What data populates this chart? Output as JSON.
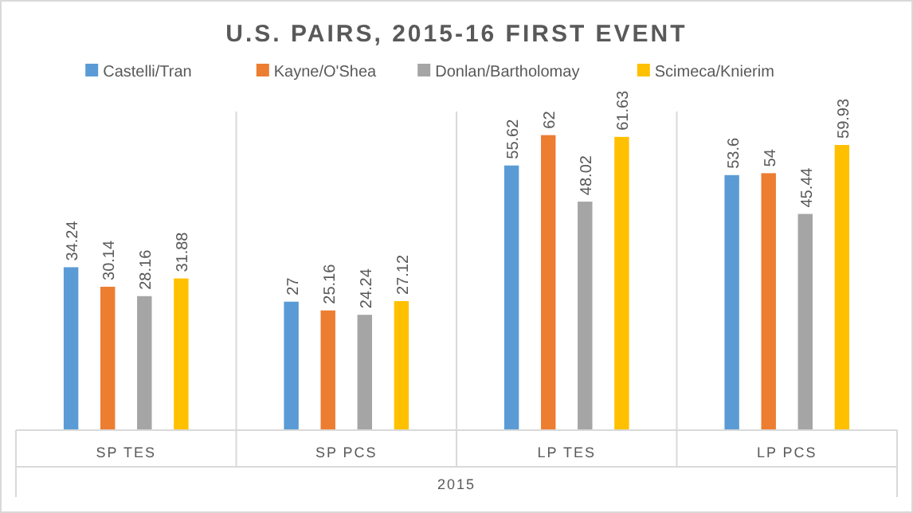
{
  "chart_data": {
    "type": "bar",
    "title": "U.S. PAIRS, 2015-16 FIRST EVENT",
    "xlabel": "2015",
    "categories": [
      "SP TES",
      "SP PCS",
      "LP TES",
      "LP PCS"
    ],
    "series": [
      {
        "name": "Castelli/Tran",
        "color": "#5b9bd5",
        "values": [
          34.24,
          27,
          55.62,
          53.6
        ]
      },
      {
        "name": "Kayne/O'Shea",
        "color": "#ed7d31",
        "values": [
          30.14,
          25.16,
          62,
          54
        ]
      },
      {
        "name": "Donlan/Bartholomay",
        "color": "#a5a5a5",
        "values": [
          28.16,
          24.24,
          48.02,
          45.44
        ]
      },
      {
        "name": "Scimeca/Knierim",
        "color": "#ffc000",
        "values": [
          31.88,
          27.12,
          61.63,
          59.93
        ]
      }
    ],
    "data_labels": true,
    "legend": "top",
    "grid": false
  }
}
